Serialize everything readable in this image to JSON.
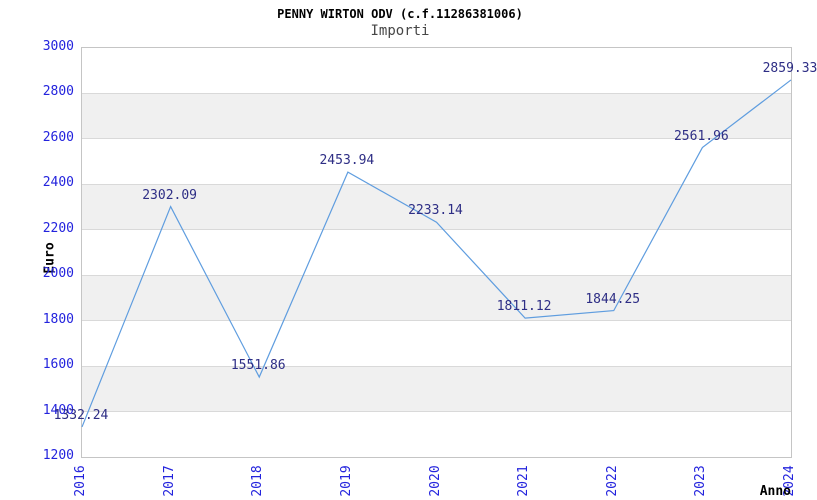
{
  "chart_data": {
    "type": "line",
    "title": "PENNY WIRTON ODV (c.f.11286381006)",
    "subtitle": "Importi",
    "xlabel": "Anno",
    "ylabel": "Euro",
    "categories": [
      "2016",
      "2017",
      "2018",
      "2019",
      "2020",
      "2021",
      "2022",
      "2023",
      "2024"
    ],
    "values": [
      1332.24,
      2302.09,
      1551.86,
      2453.94,
      2233.14,
      1811.12,
      1844.25,
      2561.96,
      2859.33
    ],
    "point_labels": [
      "1332.24",
      "2302.09",
      "1551.86",
      "2453.94",
      "2233.14",
      "1811.12",
      "1844.25",
      "2561.96",
      "2859.33"
    ],
    "ylim": [
      1200,
      3000
    ],
    "ytick_step": 200,
    "grid": true,
    "legend": "none",
    "band_fill": "alternating-horizontal",
    "colors": {
      "line": "#5f9ddf",
      "tick_label": "#2323dd",
      "point_label": "#2e2e85",
      "band_gray": "#f0f0f0",
      "gridline": "#d9d9d9",
      "border": "#c5c5c5",
      "title": "#000000",
      "subtitle": "#464646"
    }
  }
}
